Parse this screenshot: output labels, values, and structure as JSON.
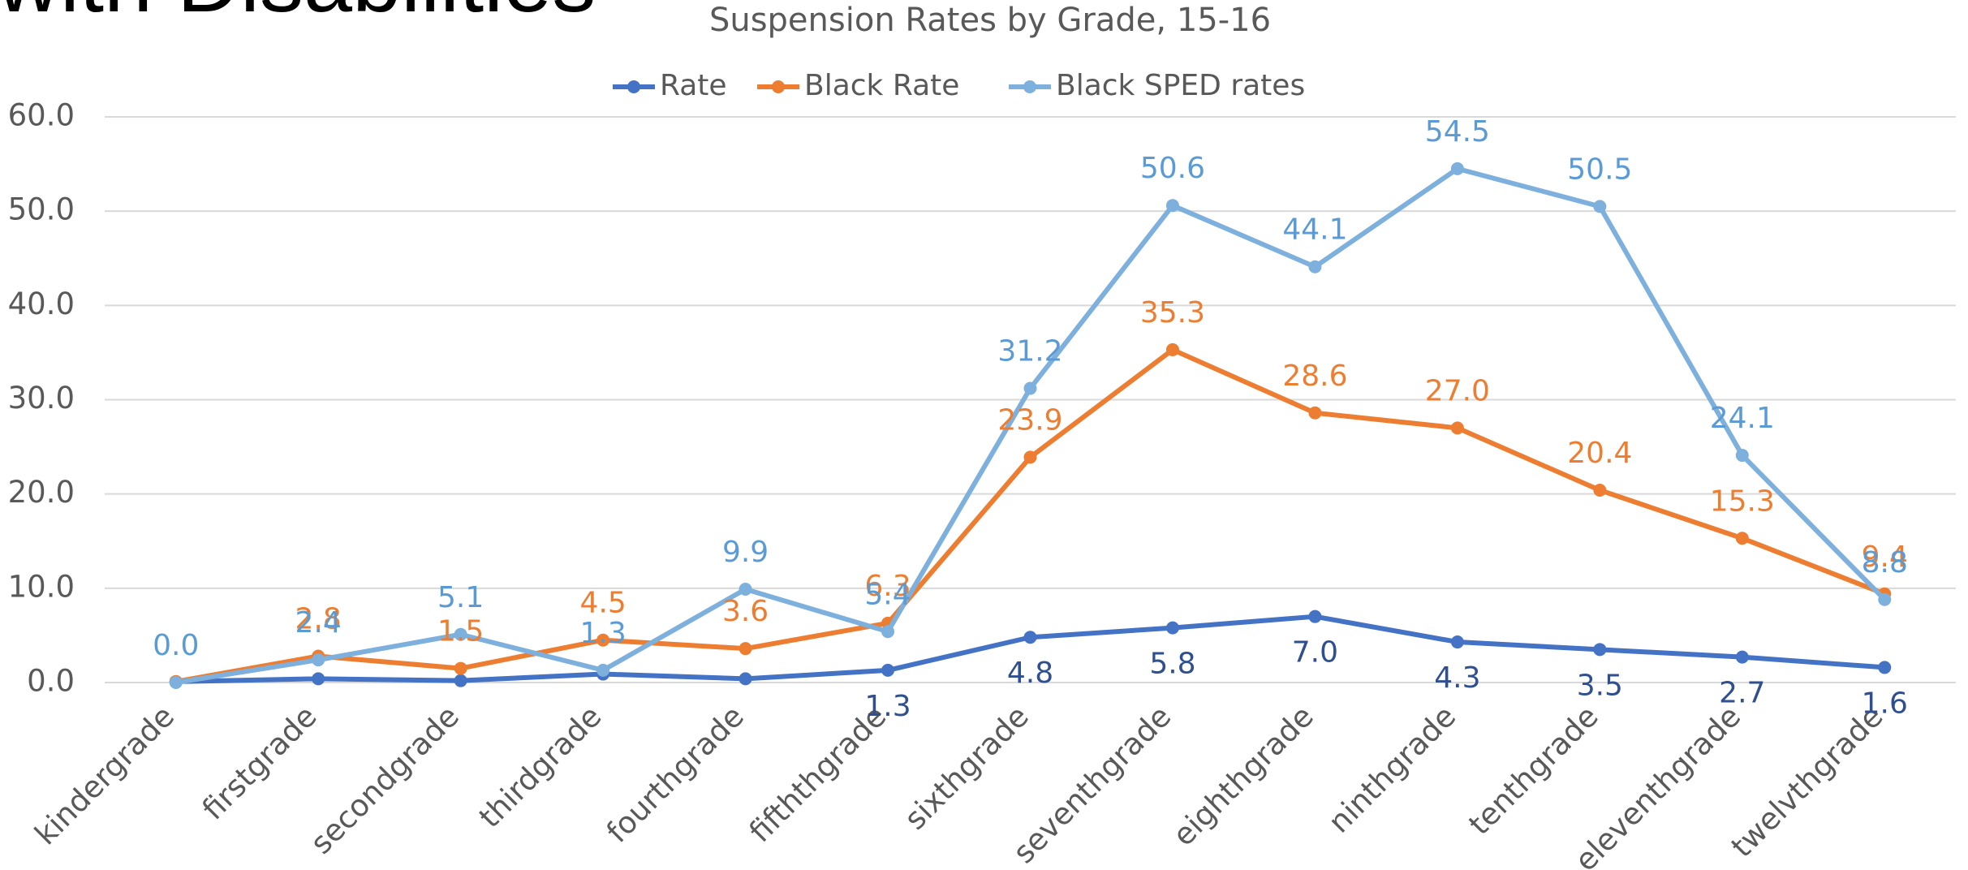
{
  "page_heading": "with Disabilities",
  "chart_data": {
    "type": "line",
    "title": "Suspension Rates by Grade, 15-16",
    "categories": [
      "kindergrade",
      "firstgrade",
      "secondgrade",
      "thirdgrade",
      "fourthgrade",
      "fifththgrade",
      "sixthgrade",
      "seventhgrade",
      "eighthgrade",
      "ninthgrade",
      "tenthgrade",
      "eleventhgrade",
      "twelvthgrade"
    ],
    "series": [
      {
        "name": "Rate",
        "color": "#4472c4",
        "label_color": "#2f4f8f",
        "values": [
          0.1,
          0.4,
          0.2,
          0.9,
          0.4,
          1.3,
          4.8,
          5.8,
          7.0,
          4.3,
          3.5,
          2.7,
          1.6
        ],
        "value_labels": [
          null,
          null,
          null,
          null,
          null,
          "1.3",
          "4.8",
          "5.8",
          "7.0",
          "4.3",
          "3.5",
          "2.7",
          "1.6"
        ]
      },
      {
        "name": "Black Rate",
        "color": "#ed7d31",
        "label_color": "#ed7d31",
        "values": [
          0.1,
          2.8,
          1.5,
          4.5,
          3.6,
          6.3,
          23.9,
          35.3,
          28.6,
          27.0,
          20.4,
          15.3,
          9.4
        ],
        "value_labels": [
          null,
          "2.8",
          "1.5",
          "4.5",
          "3.6",
          "6.3",
          "23.9",
          "35.3",
          "28.6",
          "27.0",
          "20.4",
          "15.3",
          "9.4"
        ]
      },
      {
        "name": "Black SPED rates",
        "color": "#7eb0dd",
        "label_color": "#5b9bd5",
        "values": [
          0,
          2.4,
          5.1,
          1.3,
          9.9,
          5.4,
          31.2,
          50.6,
          44.1,
          54.5,
          50.5,
          24.1,
          8.8
        ],
        "value_labels": [
          "0.0",
          "2.4",
          "5.1",
          "1.3",
          "9.9",
          "5.4",
          "31.2",
          "50.6",
          "44.1",
          "54.5",
          "50.5",
          "24.1",
          "8.8"
        ]
      }
    ],
    "ylim": [
      0,
      60
    ],
    "yticks": [
      {
        "value": 0,
        "label": "0.0"
      },
      {
        "value": 10,
        "label": "10.0"
      },
      {
        "value": 20,
        "label": "20.0"
      },
      {
        "value": 30,
        "label": "30.0"
      },
      {
        "value": 40,
        "label": "40.0"
      },
      {
        "value": 50,
        "label": "50.0"
      },
      {
        "value": 60,
        "label": "60.0"
      }
    ],
    "grid": true,
    "legend": "top"
  }
}
